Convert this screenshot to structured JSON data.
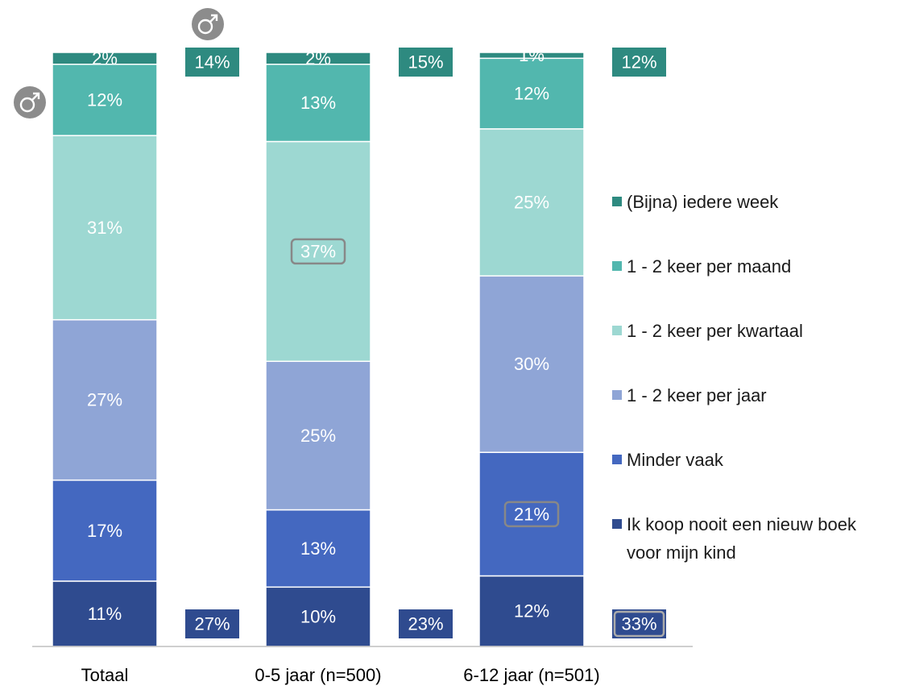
{
  "chart_data": {
    "type": "bar",
    "stacked": true,
    "ylim": [
      0,
      100
    ],
    "categories": [
      "Totaal",
      "0-5 jaar (n=500)",
      "6-12 jaar (n=501)"
    ],
    "series": [
      {
        "name": "Ik koop nooit een nieuw boek voor mijn kind",
        "color": "#2f4b8f",
        "values": [
          11,
          10,
          12
        ],
        "labels": [
          "11%",
          "10%",
          "12%"
        ]
      },
      {
        "name": "Minder vaak",
        "color": "#4468c0",
        "values": [
          17,
          13,
          21
        ],
        "labels": [
          "17%",
          "13%",
          "21%"
        ]
      },
      {
        "name": "1 - 2 keer per jaar",
        "color": "#8fa5d6",
        "values": [
          27,
          25,
          30
        ],
        "labels": [
          "27%",
          "25%",
          "30%"
        ]
      },
      {
        "name": "1 - 2 keer per kwartaal",
        "color": "#9dd8d2",
        "values": [
          31,
          37,
          25
        ],
        "labels": [
          "31%",
          "37%",
          "25%"
        ]
      },
      {
        "name": "1 - 2 keer per maand",
        "color": "#52b7ae",
        "values": [
          12,
          13,
          12
        ],
        "labels": [
          "12%",
          "13%",
          "12%"
        ]
      },
      {
        "name": "(Bijna) iedere week",
        "color": "#2e8a80",
        "values": [
          2,
          2,
          1
        ],
        "labels": [
          "2%",
          "2%",
          "1%"
        ]
      }
    ],
    "highlighted": [
      {
        "series": 3,
        "category": 1
      },
      {
        "series": 1,
        "category": 2
      }
    ],
    "top_totals": {
      "labels": [
        "14%",
        "15%",
        "12%"
      ],
      "color": "#2e8a80"
    },
    "bottom_totals": {
      "labels": [
        "27%",
        "23%",
        "33%"
      ],
      "color": "#2f4b8f",
      "highlighted": [
        2
      ]
    },
    "legend_order": [
      5,
      4,
      3,
      2,
      1,
      0
    ],
    "legend_position": "right",
    "grid": false,
    "icons": [
      "male-symbol-icon",
      "male-symbol-icon"
    ],
    "icon_color": "#8c8c8c",
    "title": "",
    "xlabel": "",
    "ylabel": ""
  }
}
